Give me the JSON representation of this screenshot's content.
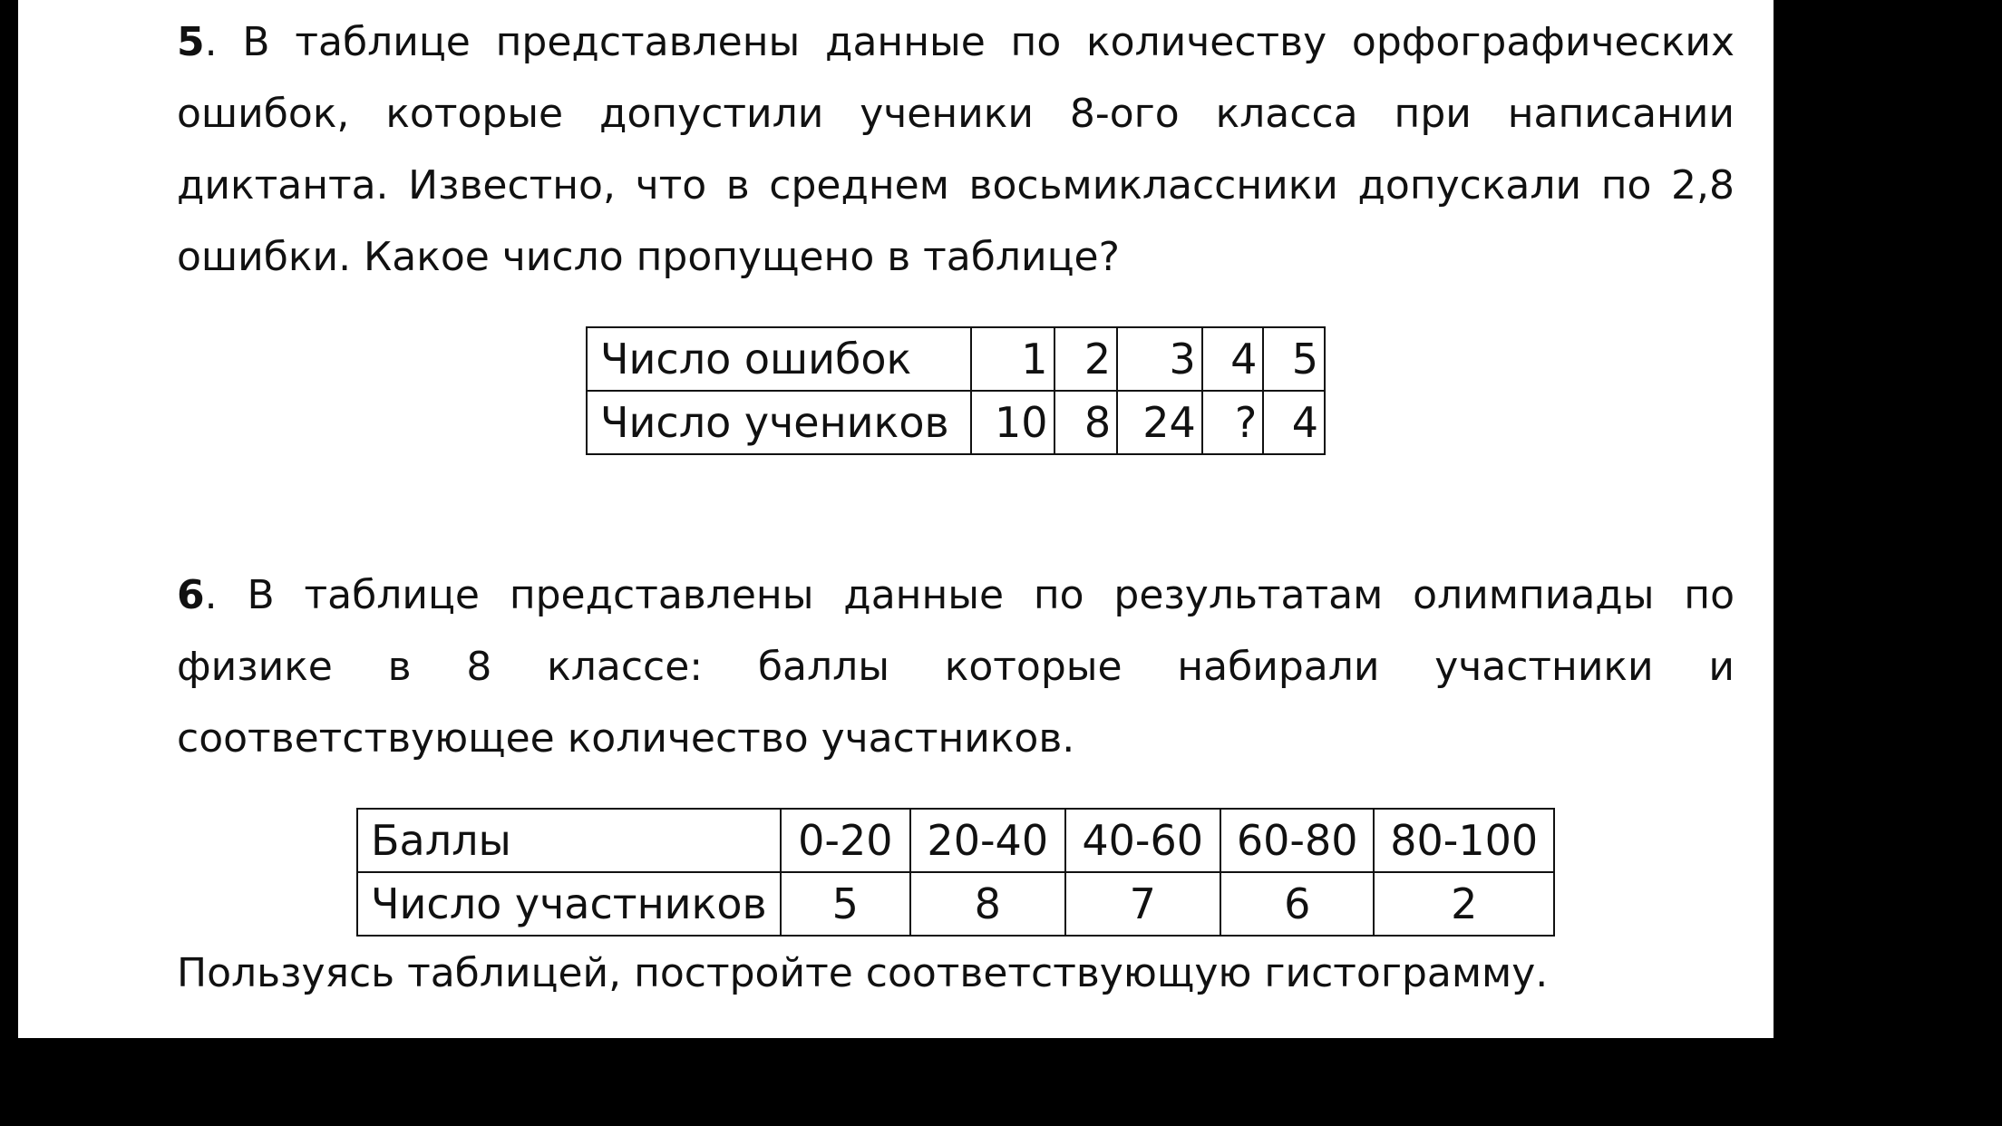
{
  "task5": {
    "number": "5",
    "lines": [
      ". В таблице представлены данные по количеству орфографических",
      "ошибок, которые допустили ученики 8-ого класса при написании",
      "диктанта. Известно, что в среднем восьмиклассники допускали по 2,8",
      "ошибки. Какое число пропущено в таблице?"
    ],
    "table": {
      "rows": [
        {
          "label": "Число ошибок",
          "cells": [
            "1",
            "2",
            "3",
            "4",
            "5"
          ]
        },
        {
          "label": "Число учеников",
          "cells": [
            "10",
            "8",
            "24",
            "?",
            "4"
          ]
        }
      ]
    }
  },
  "task6": {
    "number": "6",
    "lines": [
      ". В таблице представлены данные по результатам олимпиады по",
      "физике в 8 классе: баллы которые набирали участники и",
      "соответствующее количество участников."
    ],
    "table": {
      "rows": [
        {
          "label": "Баллы",
          "cells": [
            "0-20",
            "20-40",
            "40-60",
            "60-80",
            "80-100"
          ]
        },
        {
          "label": "Число участников",
          "cells": [
            "5",
            "8",
            "7",
            "6",
            "2"
          ]
        }
      ]
    },
    "footer": "Пользуясь таблицей, постройте соответствующую гистограмму."
  }
}
